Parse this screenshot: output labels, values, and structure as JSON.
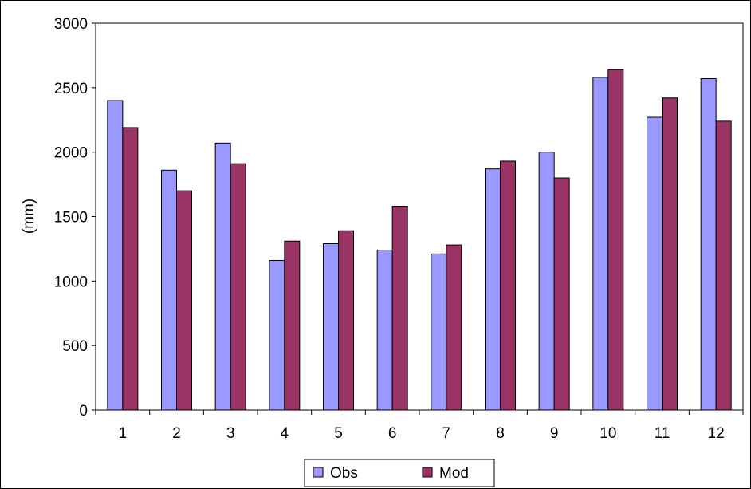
{
  "chart_data": {
    "type": "bar",
    "categories": [
      "1",
      "2",
      "3",
      "4",
      "5",
      "6",
      "7",
      "8",
      "9",
      "10",
      "11",
      "12"
    ],
    "series": [
      {
        "name": "Obs",
        "color": "#9999ff",
        "values": [
          2400,
          1860,
          2070,
          1160,
          1290,
          1240,
          1210,
          1870,
          2000,
          2580,
          2270,
          2570
        ]
      },
      {
        "name": "Mod",
        "color": "#993366",
        "values": [
          2190,
          1700,
          1910,
          1310,
          1390,
          1580,
          1280,
          1930,
          1800,
          2640,
          2420,
          2240
        ]
      }
    ],
    "ylabel": "(mm)",
    "xlabel": "",
    "ylim": [
      0,
      3000
    ],
    "yticks": [
      "0",
      "500",
      "1000",
      "1500",
      "2000",
      "2500",
      "3000"
    ],
    "grid": false,
    "legend_position": "bottom-center"
  }
}
